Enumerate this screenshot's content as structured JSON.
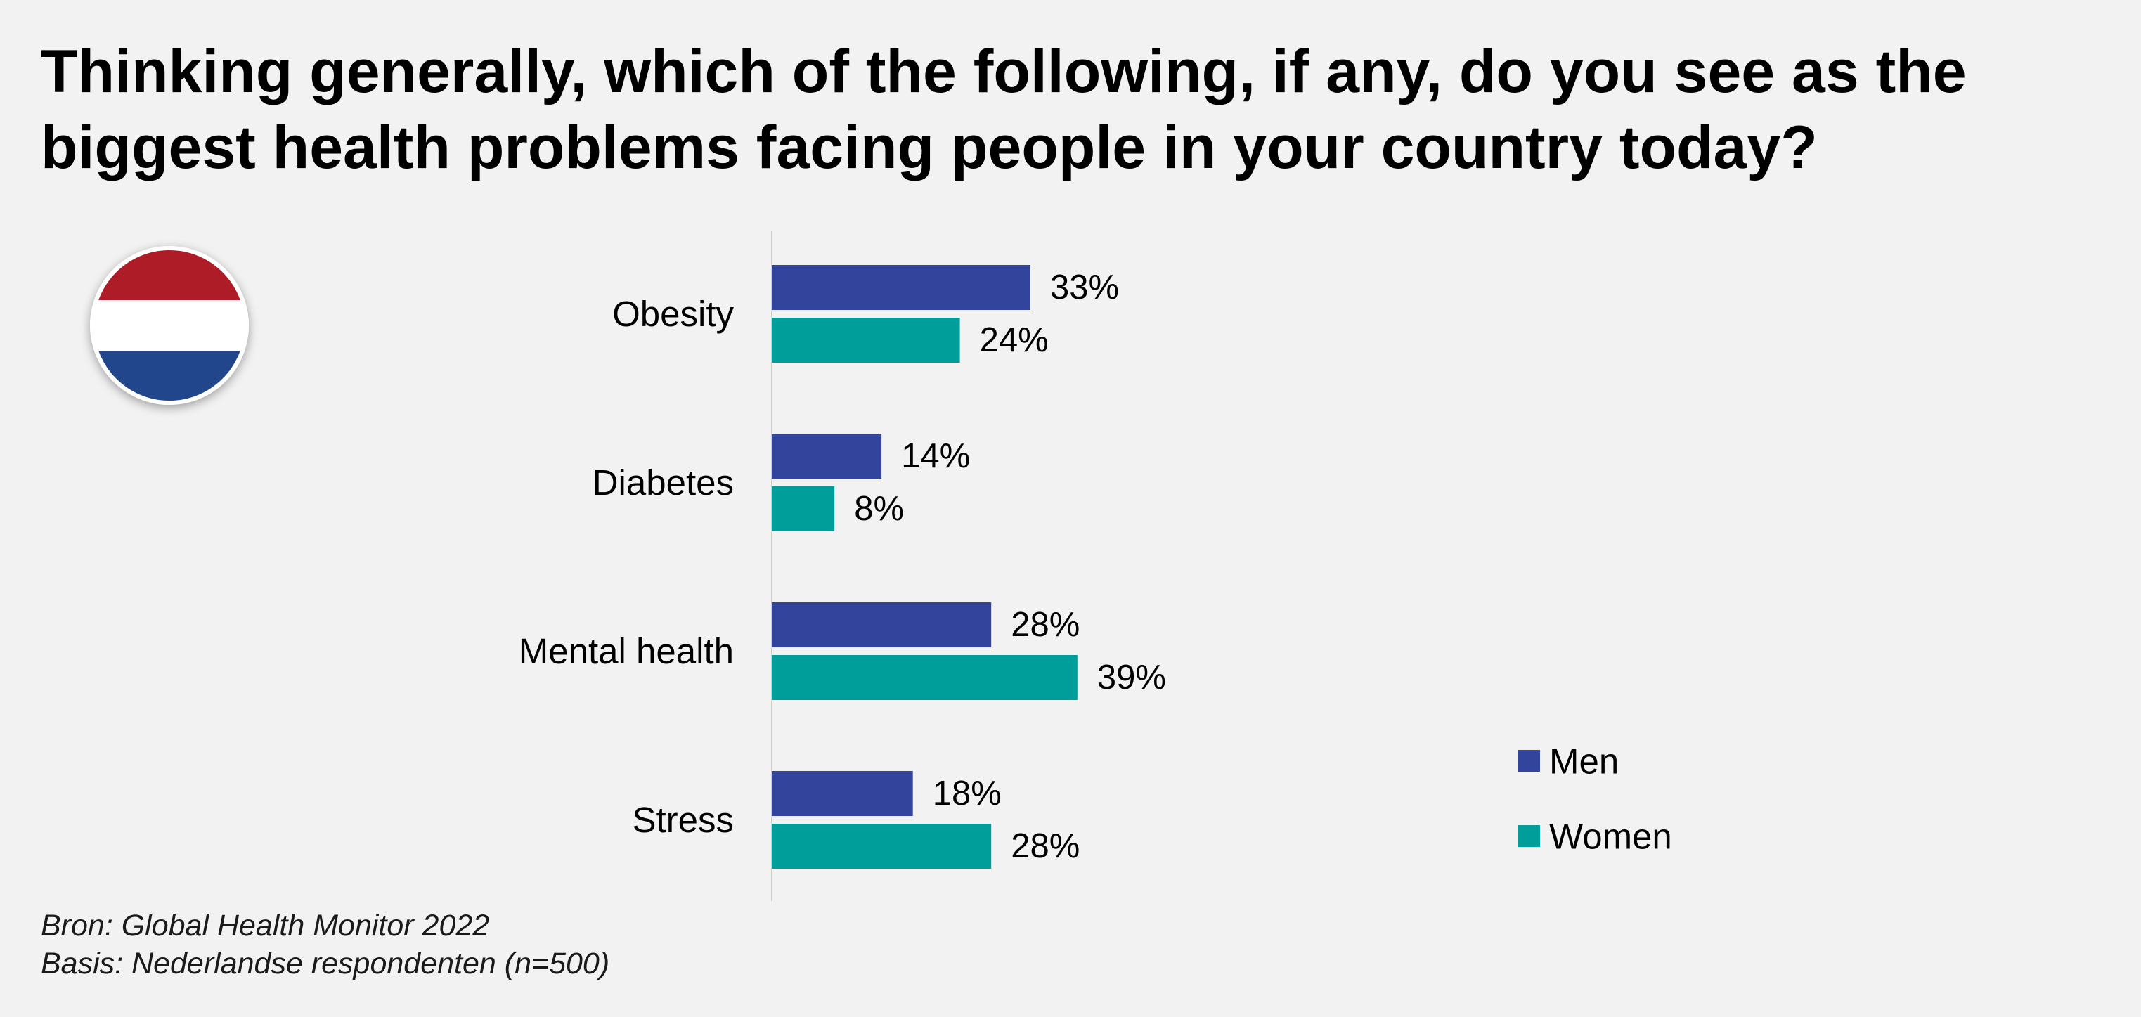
{
  "title": "Thinking generally, which of the following, if any, do you see as the biggest health problems facing people in your country today?",
  "flag": {
    "icon": "netherlands-flag-icon",
    "colors": [
      "#ae1c28",
      "#ffffff",
      "#21468b"
    ]
  },
  "colors": {
    "men": "#32449c",
    "women": "#009e9a"
  },
  "chart_data": {
    "type": "bar",
    "orientation": "horizontal",
    "categories": [
      "Obesity",
      "Diabetes",
      "Mental health",
      "Stress"
    ],
    "series": [
      {
        "name": "Men",
        "values": [
          33,
          14,
          28,
          18
        ],
        "labels": [
          "33%",
          "14%",
          "28%",
          "18%"
        ]
      },
      {
        "name": "Women",
        "values": [
          24,
          8,
          39,
          28
        ],
        "labels": [
          "24%",
          "8%",
          "39%",
          "28%"
        ]
      }
    ],
    "unit": "%",
    "legend": "right",
    "grid": false
  },
  "footnote": {
    "source": "Bron: Global Health Monitor 2022",
    "base": "Basis: Nederlandse respondenten (n=500)"
  }
}
